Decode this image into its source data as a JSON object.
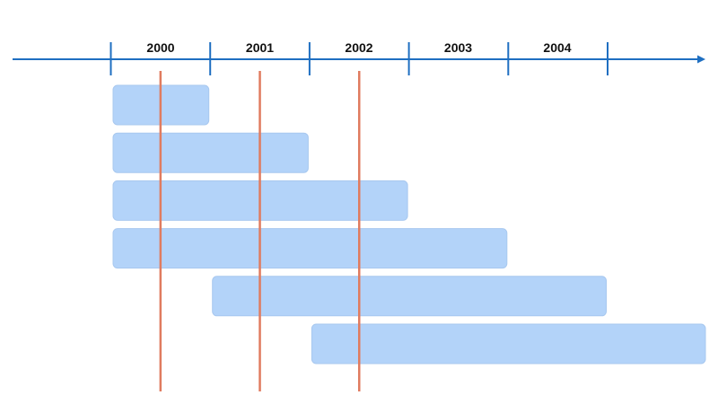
{
  "colors": {
    "axis": "#1f6fc1",
    "bar_fill": "#b3d3f9",
    "bar_stroke": "#a8c8ef",
    "marker_line": "#e07b5f",
    "label": "#111111"
  },
  "timeline": {
    "years": [
      "2000",
      "2001",
      "2002",
      "2003",
      "2004"
    ],
    "start_year": 2000,
    "axis_has_arrow": true
  },
  "intervals": [
    {
      "start": 2000.0,
      "end": 2001.0
    },
    {
      "start": 2000.0,
      "end": 2002.0
    },
    {
      "start": 2000.0,
      "end": 2003.0
    },
    {
      "start": 2000.0,
      "end": 2004.0
    },
    {
      "start": 2001.0,
      "end": 2005.0
    },
    {
      "start": 2002.0,
      "end": 2006.0
    }
  ],
  "markers": [
    2000.5,
    2001.5,
    2002.5
  ]
}
